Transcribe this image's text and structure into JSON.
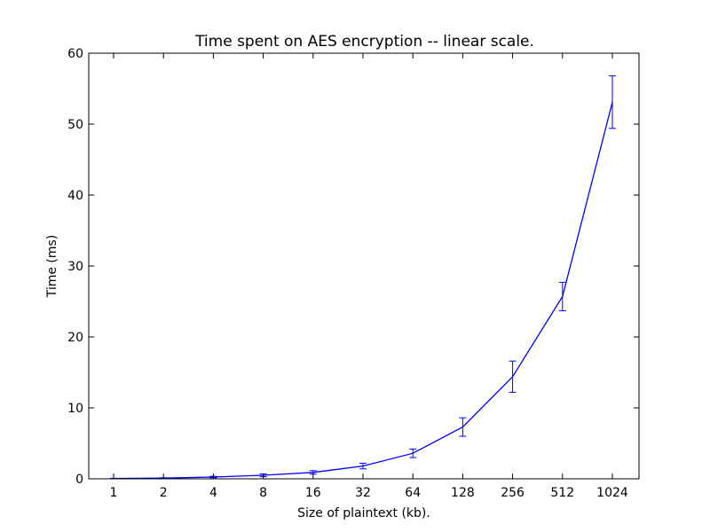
{
  "chart_data": {
    "type": "line",
    "title": "Time spent on AES encryption -- linear scale.",
    "xlabel": "Size of plaintext (kb).",
    "ylabel": "Time (ms)",
    "categories": [
      "1",
      "2",
      "4",
      "8",
      "16",
      "32",
      "64",
      "128",
      "256",
      "512",
      "1024"
    ],
    "ylim": [
      0,
      60
    ],
    "yticks": [
      0,
      10,
      20,
      30,
      40,
      50,
      60
    ],
    "grid": false,
    "legend": "none",
    "color": "#0000ff",
    "series": [
      {
        "values": [
          0.05,
          0.1,
          0.25,
          0.5,
          0.9,
          1.8,
          3.6,
          7.3,
          14.4,
          25.7,
          53.1
        ],
        "err": [
          0.03,
          0.05,
          0.1,
          0.2,
          0.25,
          0.4,
          0.6,
          1.3,
          2.2,
          2.0,
          3.7
        ]
      }
    ]
  }
}
